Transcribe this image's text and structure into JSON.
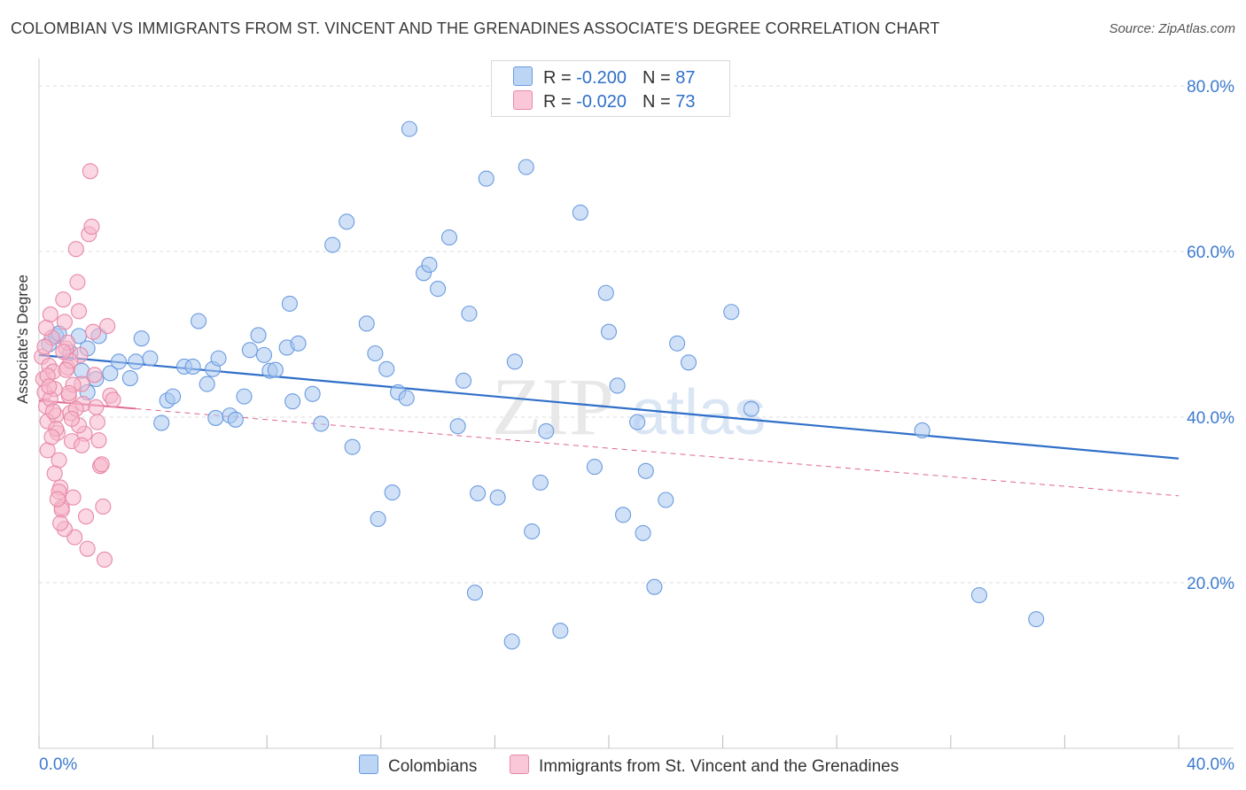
{
  "title": "COLOMBIAN VS IMMIGRANTS FROM ST. VINCENT AND THE GRENADINES ASSOCIATE'S DEGREE CORRELATION CHART",
  "source": "Source: ZipAtlas.com",
  "watermark": {
    "zip": "ZIP",
    "atlas": "atlas"
  },
  "legend": {
    "rows": [
      {
        "r_label": "R = ",
        "r_value": "-0.200",
        "n_label": "N = ",
        "n_value": "87"
      },
      {
        "r_label": "R = ",
        "r_value": "-0.020",
        "n_label": "N = ",
        "n_value": "73"
      }
    ]
  },
  "bottom_legend": [
    "Colombians",
    "Immigrants from St. Vincent and the Grenadines"
  ],
  "colors": {
    "blue_fill": "#a9c8f0",
    "blue_stroke": "#6b9be0",
    "blue_line": "#2f6fc9",
    "pink_fill": "#f5b6cb",
    "pink_stroke": "#e889a8",
    "pink_line": "#e0668f",
    "tick_text": "#3d7bd0",
    "grid": "#dddddd"
  },
  "chart_data": {
    "type": "scatter",
    "title": "COLOMBIAN VS IMMIGRANTS FROM ST. VINCENT AND THE GRENADINES ASSOCIATE'S DEGREE CORRELATION CHART",
    "xlabel": "",
    "ylabel": "Associate's Degree",
    "xlim": [
      0,
      40
    ],
    "ylim": [
      0,
      80
    ],
    "x_tick_labels": [
      "0.0%",
      "40.0%"
    ],
    "y_ticks": [
      20,
      40,
      60,
      80
    ],
    "y_tick_labels": [
      "20.0%",
      "40.0%",
      "60.0%",
      "80.0%"
    ],
    "series": [
      {
        "name": "Colombians",
        "R": -0.2,
        "N": 87,
        "trend": {
          "x": [
            0,
            40
          ],
          "y": [
            47.5,
            35.0
          ],
          "style": "solid"
        },
        "points": [
          [
            0.35,
            48.8
          ],
          [
            0.6,
            49.8
          ],
          [
            0.7,
            50.1
          ],
          [
            1.1,
            47.8
          ],
          [
            1.4,
            49.8
          ],
          [
            1.7,
            48.3
          ],
          [
            2.1,
            49.8
          ],
          [
            1.5,
            45.6
          ],
          [
            2.5,
            45.3
          ],
          [
            2.8,
            46.7
          ],
          [
            1.7,
            43.0
          ],
          [
            3.2,
            44.7
          ],
          [
            3.6,
            49.5
          ],
          [
            3.9,
            47.1
          ],
          [
            3.4,
            46.7
          ],
          [
            2.0,
            44.6
          ],
          [
            4.5,
            42.0
          ],
          [
            4.3,
            39.3
          ],
          [
            4.7,
            42.5
          ],
          [
            5.1,
            46.1
          ],
          [
            5.4,
            46.1
          ],
          [
            5.6,
            51.6
          ],
          [
            5.9,
            44.0
          ],
          [
            6.1,
            45.8
          ],
          [
            6.2,
            39.9
          ],
          [
            6.3,
            47.1
          ],
          [
            6.7,
            40.2
          ],
          [
            6.9,
            39.7
          ],
          [
            7.2,
            42.5
          ],
          [
            7.4,
            48.1
          ],
          [
            7.7,
            49.9
          ],
          [
            7.9,
            47.5
          ],
          [
            8.1,
            45.6
          ],
          [
            8.3,
            45.7
          ],
          [
            8.7,
            48.4
          ],
          [
            8.8,
            53.7
          ],
          [
            8.9,
            41.9
          ],
          [
            9.1,
            48.9
          ],
          [
            9.6,
            42.8
          ],
          [
            9.9,
            39.2
          ],
          [
            10.3,
            60.8
          ],
          [
            10.8,
            63.6
          ],
          [
            11.0,
            36.4
          ],
          [
            11.5,
            51.3
          ],
          [
            11.8,
            47.7
          ],
          [
            11.9,
            27.7
          ],
          [
            12.2,
            45.8
          ],
          [
            12.6,
            43.0
          ],
          [
            12.9,
            42.3
          ],
          [
            12.4,
            30.9
          ],
          [
            13.0,
            74.8
          ],
          [
            13.5,
            57.4
          ],
          [
            13.7,
            58.4
          ],
          [
            14.0,
            55.5
          ],
          [
            14.4,
            61.7
          ],
          [
            14.7,
            38.9
          ],
          [
            14.9,
            44.4
          ],
          [
            15.1,
            52.5
          ],
          [
            15.3,
            18.8
          ],
          [
            15.4,
            30.8
          ],
          [
            15.7,
            68.8
          ],
          [
            16.1,
            30.3
          ],
          [
            16.6,
            12.9
          ],
          [
            16.7,
            46.7
          ],
          [
            17.1,
            70.2
          ],
          [
            17.3,
            26.2
          ],
          [
            17.6,
            32.1
          ],
          [
            17.8,
            38.3
          ],
          [
            18.3,
            14.2
          ],
          [
            19.0,
            64.7
          ],
          [
            19.5,
            34.0
          ],
          [
            19.9,
            55.0
          ],
          [
            20.0,
            50.3
          ],
          [
            20.3,
            43.8
          ],
          [
            21.0,
            39.4
          ],
          [
            21.3,
            33.5
          ],
          [
            21.6,
            19.5
          ],
          [
            22.0,
            30.0
          ],
          [
            20.5,
            28.2
          ],
          [
            21.2,
            26.0
          ],
          [
            22.4,
            48.9
          ],
          [
            22.8,
            46.6
          ],
          [
            24.3,
            52.7
          ],
          [
            25.0,
            41.0
          ],
          [
            31.0,
            38.4
          ],
          [
            33.0,
            18.5
          ],
          [
            35.0,
            15.6
          ]
        ]
      },
      {
        "name": "Immigrants from St. Vincent and the Grenadines",
        "R": -0.02,
        "N": 73,
        "trend": {
          "x": [
            0,
            40
          ],
          "y": [
            42.0,
            30.5
          ],
          "style": "dashed"
        },
        "points": [
          [
            0.1,
            47.3
          ],
          [
            0.15,
            44.6
          ],
          [
            0.2,
            43.0
          ],
          [
            0.25,
            41.3
          ],
          [
            0.3,
            39.5
          ],
          [
            0.3,
            36.0
          ],
          [
            0.35,
            46.2
          ],
          [
            0.4,
            52.4
          ],
          [
            0.45,
            49.6
          ],
          [
            0.5,
            45.5
          ],
          [
            0.55,
            43.4
          ],
          [
            0.6,
            40.2
          ],
          [
            0.65,
            38.1
          ],
          [
            0.7,
            34.8
          ],
          [
            0.75,
            31.5
          ],
          [
            0.8,
            29.1
          ],
          [
            0.85,
            54.2
          ],
          [
            0.9,
            51.5
          ],
          [
            0.95,
            48.3
          ],
          [
            1.0,
            46.0
          ],
          [
            1.05,
            42.6
          ],
          [
            1.1,
            40.5
          ],
          [
            1.15,
            37.1
          ],
          [
            1.2,
            30.3
          ],
          [
            1.25,
            25.5
          ],
          [
            1.3,
            60.3
          ],
          [
            1.35,
            56.3
          ],
          [
            1.4,
            52.8
          ],
          [
            1.45,
            47.5
          ],
          [
            1.5,
            44.0
          ],
          [
            1.55,
            41.6
          ],
          [
            1.6,
            38.0
          ],
          [
            1.65,
            28.0
          ],
          [
            1.7,
            24.1
          ],
          [
            1.75,
            62.1
          ],
          [
            1.8,
            69.7
          ],
          [
            1.85,
            63.0
          ],
          [
            1.9,
            50.3
          ],
          [
            1.95,
            45.1
          ],
          [
            2.0,
            41.2
          ],
          [
            2.05,
            39.4
          ],
          [
            2.1,
            37.2
          ],
          [
            2.15,
            34.1
          ],
          [
            2.2,
            34.3
          ],
          [
            2.25,
            29.2
          ],
          [
            2.3,
            22.8
          ],
          [
            2.4,
            51.0
          ],
          [
            2.5,
            42.6
          ],
          [
            2.6,
            42.1
          ],
          [
            0.2,
            48.5
          ],
          [
            0.3,
            45.0
          ],
          [
            0.4,
            42.2
          ],
          [
            0.5,
            40.7
          ],
          [
            0.6,
            38.6
          ],
          [
            0.7,
            31.0
          ],
          [
            0.8,
            28.8
          ],
          [
            0.9,
            26.5
          ],
          [
            1.0,
            49.0
          ],
          [
            1.1,
            46.8
          ],
          [
            1.2,
            43.9
          ],
          [
            1.3,
            41.0
          ],
          [
            1.4,
            39.0
          ],
          [
            1.5,
            36.6
          ],
          [
            0.25,
            50.8
          ],
          [
            0.35,
            43.7
          ],
          [
            0.45,
            37.6
          ],
          [
            0.55,
            33.2
          ],
          [
            0.65,
            30.1
          ],
          [
            0.75,
            27.2
          ],
          [
            0.85,
            47.9
          ],
          [
            0.95,
            45.7
          ],
          [
            1.05,
            42.9
          ],
          [
            1.15,
            39.8
          ]
        ]
      }
    ]
  }
}
